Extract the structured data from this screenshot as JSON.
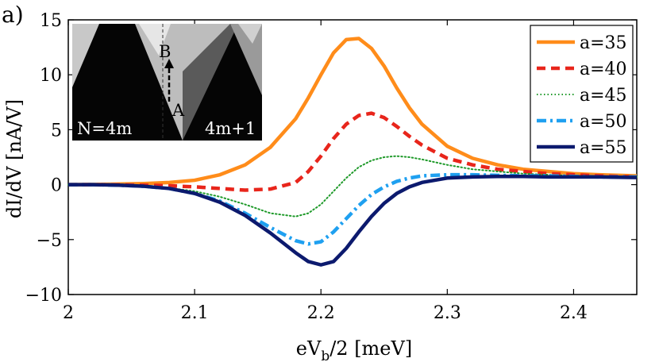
{
  "panel_label": "a)",
  "colors": {
    "a35": "#ff8c1a",
    "a40": "#e8251b",
    "a45": "#1f9a2a",
    "a50": "#1fa0f0",
    "a55": "#0c1a6e"
  },
  "chart_data": {
    "type": "line",
    "title": "",
    "xlabel": "eV_b/2 [meV]",
    "xlabel_main": "eV",
    "xlabel_sub": "b",
    "xlabel_tail": "/2 [meV]",
    "ylabel": "dI/dV [nA/V]",
    "xlim": [
      2.0,
      2.45
    ],
    "ylim": [
      -10,
      15
    ],
    "xticks": [
      2.0,
      2.1,
      2.2,
      2.3,
      2.4
    ],
    "xtick_labels": [
      "2",
      "2.1",
      "2.2",
      "2.3",
      "2.4"
    ],
    "yticks": [
      -10,
      -5,
      0,
      5,
      10,
      15
    ],
    "ytick_labels": [
      "−10",
      "−5",
      "0",
      "5",
      "10",
      "15"
    ],
    "grid": false,
    "legend_position": "top-right",
    "x": [
      2.0,
      2.02,
      2.04,
      2.06,
      2.08,
      2.1,
      2.12,
      2.14,
      2.16,
      2.18,
      2.19,
      2.2,
      2.21,
      2.22,
      2.23,
      2.24,
      2.25,
      2.26,
      2.27,
      2.28,
      2.3,
      2.32,
      2.34,
      2.36,
      2.38,
      2.4,
      2.42,
      2.45
    ],
    "series": [
      {
        "name": "a=35",
        "color_key": "a35",
        "style": "solid",
        "values": [
          0.0,
          0.02,
          0.05,
          0.1,
          0.2,
          0.4,
          0.9,
          1.8,
          3.4,
          6.0,
          7.9,
          10.0,
          12.0,
          13.2,
          13.3,
          12.4,
          10.8,
          8.8,
          7.0,
          5.5,
          3.5,
          2.4,
          1.8,
          1.4,
          1.2,
          1.0,
          0.9,
          0.8
        ]
      },
      {
        "name": "a=40",
        "color_key": "a40",
        "style": "dashed",
        "values": [
          0.0,
          0.0,
          -0.02,
          -0.05,
          -0.1,
          -0.2,
          -0.35,
          -0.5,
          -0.4,
          0.2,
          1.2,
          2.6,
          4.2,
          5.5,
          6.3,
          6.5,
          6.1,
          5.3,
          4.4,
          3.6,
          2.4,
          1.8,
          1.4,
          1.2,
          1.0,
          0.9,
          0.8,
          0.7
        ]
      },
      {
        "name": "a=45",
        "color_key": "a45",
        "style": "dotted",
        "values": [
          0.0,
          0.0,
          -0.05,
          -0.1,
          -0.3,
          -0.6,
          -1.1,
          -1.8,
          -2.6,
          -2.9,
          -2.6,
          -1.8,
          -0.6,
          0.6,
          1.6,
          2.2,
          2.5,
          2.6,
          2.5,
          2.3,
          1.8,
          1.4,
          1.2,
          1.0,
          0.9,
          0.8,
          0.75,
          0.7
        ]
      },
      {
        "name": "a=50",
        "color_key": "a50",
        "style": "dashdot",
        "values": [
          0.0,
          0.0,
          -0.05,
          -0.15,
          -0.35,
          -0.8,
          -1.5,
          -2.6,
          -3.9,
          -5.1,
          -5.4,
          -5.2,
          -4.3,
          -3.1,
          -1.9,
          -0.9,
          -0.2,
          0.3,
          0.6,
          0.8,
          0.9,
          0.9,
          0.85,
          0.8,
          0.8,
          0.75,
          0.7,
          0.7
        ]
      },
      {
        "name": "a=55",
        "color_key": "a55",
        "style": "solid",
        "values": [
          0.0,
          0.0,
          -0.05,
          -0.15,
          -0.35,
          -0.8,
          -1.6,
          -2.8,
          -4.4,
          -6.2,
          -7.0,
          -7.3,
          -7.0,
          -5.8,
          -4.3,
          -2.9,
          -1.7,
          -0.8,
          -0.2,
          0.2,
          0.6,
          0.7,
          0.75,
          0.75,
          0.7,
          0.7,
          0.7,
          0.65
        ]
      }
    ],
    "inset": {
      "labels": {
        "point_a": "A",
        "point_b": "B",
        "left": "N=4m",
        "right": "4m+1"
      }
    }
  }
}
